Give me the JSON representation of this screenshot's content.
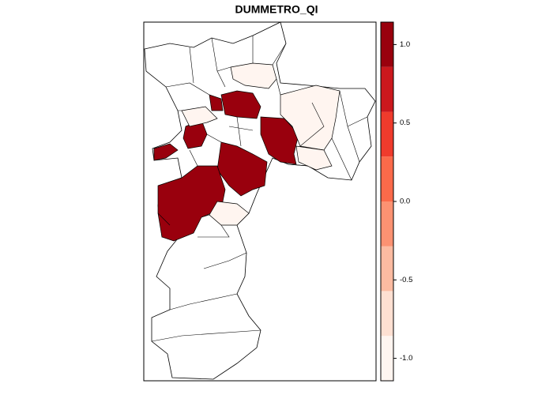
{
  "chart_data": {
    "type": "map",
    "title": "DUMMETRO_QI",
    "region_values": [
      1,
      1,
      1,
      1,
      1,
      1,
      1,
      -1,
      -1,
      -1,
      -1,
      -1
    ],
    "colorbar": {
      "breaks": [
        -1.143,
        -0.857,
        -0.571,
        -0.286,
        0,
        0.286,
        0.571,
        0.857,
        1.143
      ],
      "colors": [
        "#fff5f0",
        "#fee0d2",
        "#fcbba1",
        "#fc9272",
        "#fb6a4a",
        "#ef3b2c",
        "#cb181d",
        "#99000d"
      ],
      "ticks": [
        {
          "value": -1,
          "label": "-1.0"
        },
        -0.5,
        {
          "value": 0,
          "label": "0.0"
        },
        0.5,
        {
          "value": 1,
          "label": "1.0"
        }
      ]
    }
  }
}
